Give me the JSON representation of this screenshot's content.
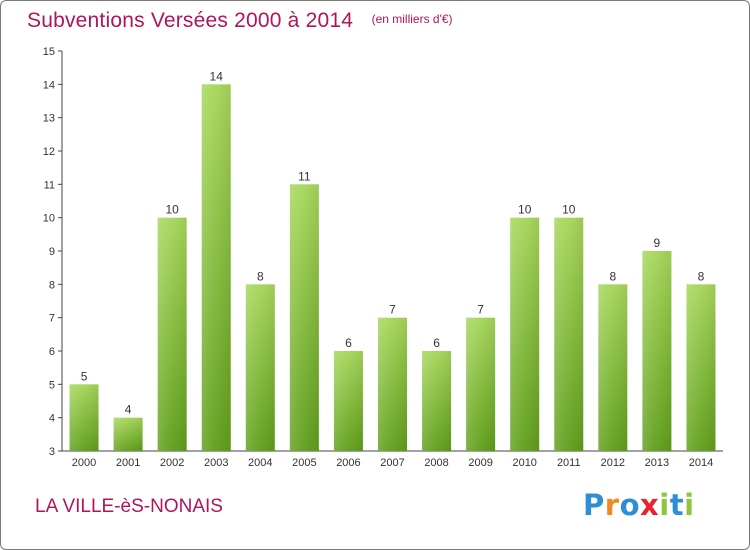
{
  "title": "Subventions Versées 2000 à 2014",
  "subtitle": "(en milliers d'€)",
  "town": "LA VILLE-èS-NONAIS",
  "logo": {
    "text": "Proxiti",
    "colors": [
      "#2e8fd8",
      "#f08a1c",
      "#2e8fd8",
      "#e8232a",
      "#8dc63f",
      "#2e8fd8",
      "#8dc63f"
    ]
  },
  "colors": {
    "title": "#b0145a",
    "bar_top": "#a6d65a",
    "bar_bottom": "#5f9e1a",
    "axis": "#444444",
    "grid": "#c8c8c8"
  },
  "chart_data": {
    "type": "bar",
    "categories": [
      "2000",
      "2001",
      "2002",
      "2003",
      "2004",
      "2005",
      "2006",
      "2007",
      "2008",
      "2009",
      "2010",
      "2011",
      "2012",
      "2013",
      "2014"
    ],
    "values": [
      5,
      4,
      10,
      14,
      8,
      11,
      6,
      7,
      6,
      7,
      10,
      10,
      8,
      9,
      8
    ],
    "data_labels": [
      "5",
      "4",
      "10",
      "14",
      "8",
      "11",
      "6",
      "7",
      "6",
      "7",
      "10",
      "10",
      "8",
      "9",
      "8"
    ],
    "yticks": [
      "3",
      "4",
      "5",
      "6",
      "7",
      "8",
      "9",
      "10",
      "11",
      "12",
      "13",
      "14",
      "15"
    ],
    "ylim": [
      3,
      15
    ],
    "title": "Subventions Versées 2000 à 2014",
    "xlabel": "",
    "ylabel": "",
    "grid": false,
    "legend": "none"
  }
}
